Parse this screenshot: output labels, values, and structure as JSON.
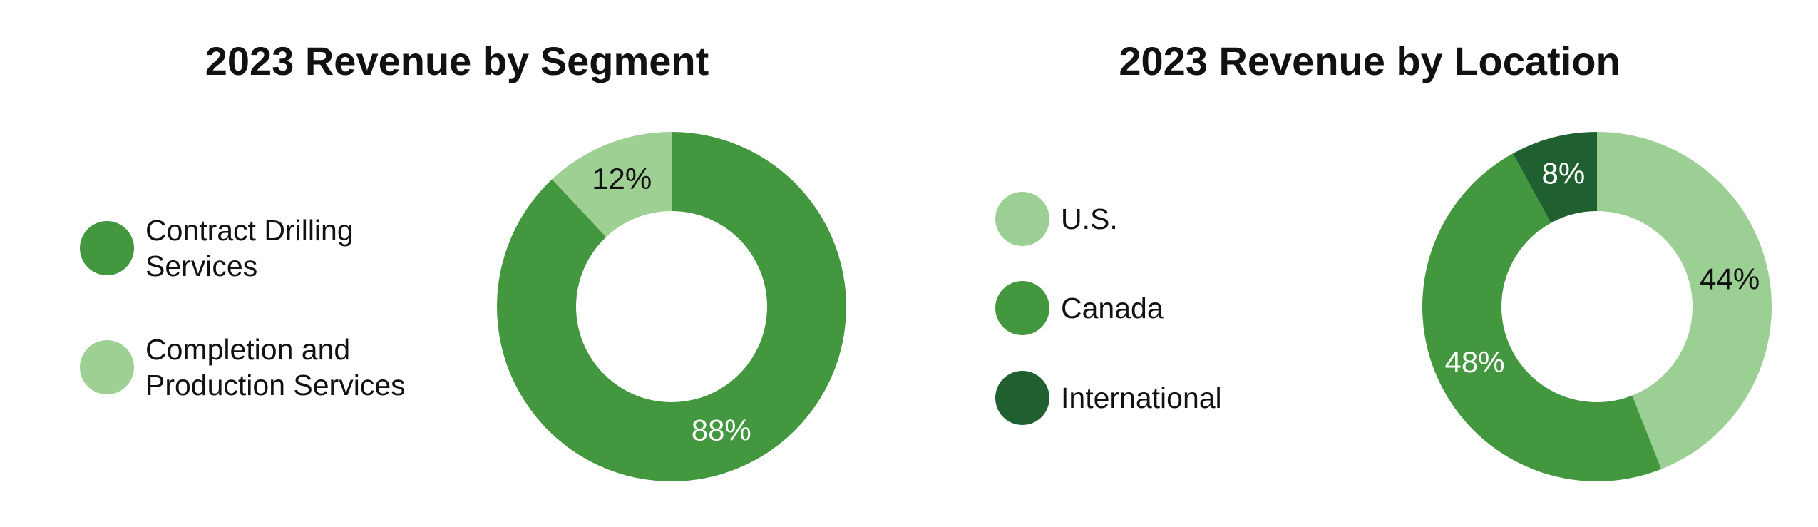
{
  "chart_data": [
    {
      "type": "donut",
      "title": "2023 Revenue by Segment",
      "categories": [
        "Contract Drilling Services",
        "Completion and Production Services"
      ],
      "values": [
        88,
        12
      ],
      "value_labels": [
        "88%",
        "12%"
      ],
      "colors": [
        "#43973e",
        "#9ed094"
      ]
    },
    {
      "type": "donut",
      "title": "2023 Revenue by Location",
      "categories": [
        "U.S.",
        "Canada",
        "International"
      ],
      "values": [
        44,
        48,
        8
      ],
      "value_labels": [
        "44%",
        "48%",
        "8%"
      ],
      "colors": [
        "#9ccf94",
        "#43973e",
        "#1f5f30"
      ]
    }
  ]
}
